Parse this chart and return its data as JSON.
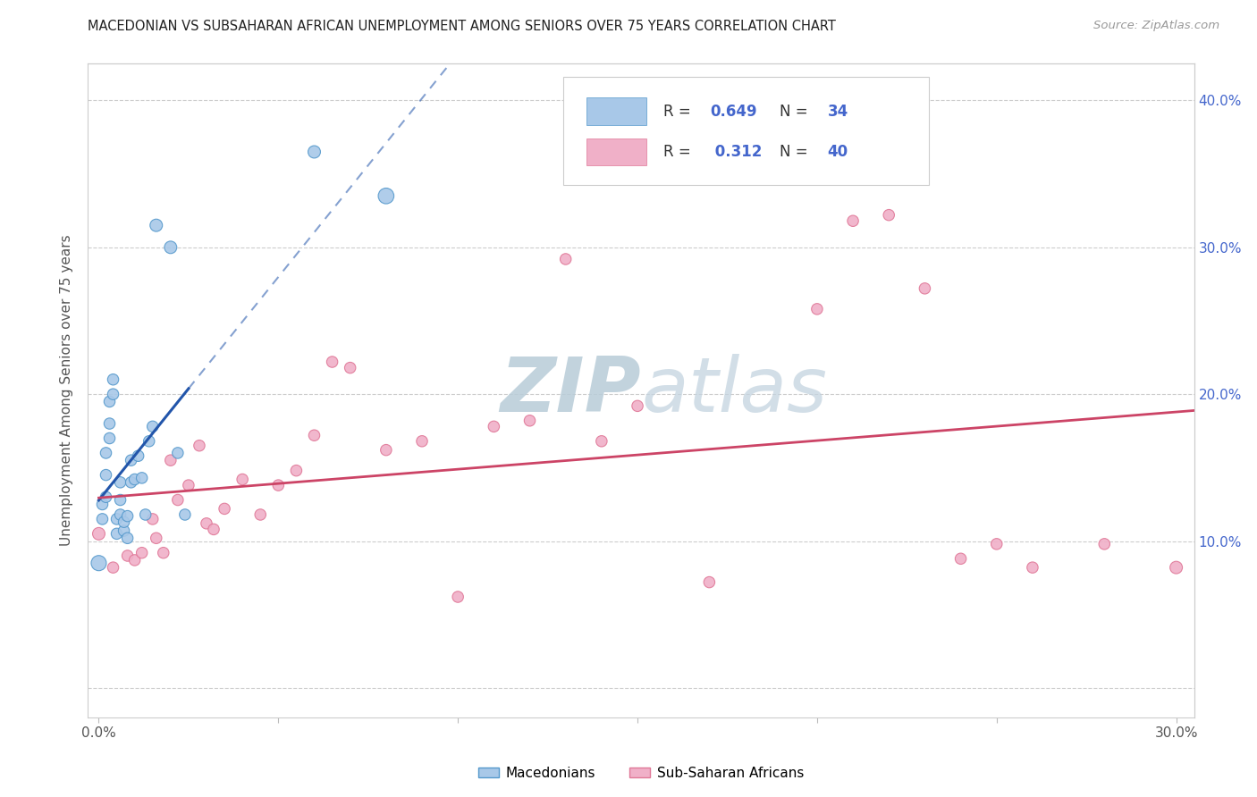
{
  "title": "MACEDONIAN VS SUBSAHARAN AFRICAN UNEMPLOYMENT AMONG SENIORS OVER 75 YEARS CORRELATION CHART",
  "source": "Source: ZipAtlas.com",
  "ylabel": "Unemployment Among Seniors over 75 years",
  "xlim": [
    -0.003,
    0.305
  ],
  "ylim": [
    -0.02,
    0.425
  ],
  "xtick_pos": [
    0.0,
    0.05,
    0.1,
    0.15,
    0.2,
    0.25,
    0.3
  ],
  "xtick_labels": [
    "0.0%",
    "",
    "",
    "",
    "",
    "",
    "30.0%"
  ],
  "ytick_pos": [
    0.0,
    0.1,
    0.2,
    0.3,
    0.4
  ],
  "ytick_labels_right": [
    "",
    "10.0%",
    "20.0%",
    "30.0%",
    "40.0%"
  ],
  "macedonian_color": "#a8c8e8",
  "macedonian_edge": "#5599cc",
  "subsaharan_color": "#f0b0c8",
  "subsaharan_edge": "#e07898",
  "regression_blue": "#2255aa",
  "regression_pink": "#cc4466",
  "watermark_zip_color": "#c0d0e0",
  "watermark_atlas_color": "#c8d8e8",
  "R_mac": 0.649,
  "N_mac": 34,
  "R_sub": 0.312,
  "N_sub": 40,
  "legend_text_color": "#4466cc",
  "legend_label_color": "#333333",
  "macedonian_x": [
    0.0,
    0.001,
    0.001,
    0.002,
    0.002,
    0.002,
    0.003,
    0.003,
    0.003,
    0.004,
    0.004,
    0.005,
    0.005,
    0.006,
    0.006,
    0.006,
    0.007,
    0.007,
    0.008,
    0.008,
    0.009,
    0.009,
    0.01,
    0.011,
    0.012,
    0.013,
    0.014,
    0.015,
    0.016,
    0.02,
    0.022,
    0.024,
    0.06,
    0.08
  ],
  "macedonian_y": [
    0.085,
    0.115,
    0.125,
    0.13,
    0.145,
    0.16,
    0.17,
    0.18,
    0.195,
    0.2,
    0.21,
    0.105,
    0.115,
    0.118,
    0.128,
    0.14,
    0.107,
    0.113,
    0.102,
    0.117,
    0.14,
    0.155,
    0.142,
    0.158,
    0.143,
    0.118,
    0.168,
    0.178,
    0.315,
    0.3,
    0.16,
    0.118,
    0.365,
    0.335
  ],
  "macedonian_sizes": [
    150,
    80,
    80,
    80,
    80,
    80,
    80,
    80,
    80,
    80,
    80,
    80,
    80,
    80,
    80,
    80,
    80,
    80,
    80,
    80,
    80,
    80,
    80,
    80,
    80,
    80,
    80,
    80,
    100,
    100,
    80,
    80,
    100,
    160
  ],
  "subsaharan_x": [
    0.0,
    0.004,
    0.008,
    0.01,
    0.012,
    0.015,
    0.016,
    0.018,
    0.02,
    0.022,
    0.025,
    0.028,
    0.03,
    0.032,
    0.035,
    0.04,
    0.045,
    0.05,
    0.055,
    0.06,
    0.065,
    0.07,
    0.08,
    0.09,
    0.1,
    0.11,
    0.12,
    0.13,
    0.14,
    0.15,
    0.17,
    0.2,
    0.21,
    0.22,
    0.23,
    0.24,
    0.25,
    0.26,
    0.28,
    0.3
  ],
  "subsaharan_y": [
    0.105,
    0.082,
    0.09,
    0.087,
    0.092,
    0.115,
    0.102,
    0.092,
    0.155,
    0.128,
    0.138,
    0.165,
    0.112,
    0.108,
    0.122,
    0.142,
    0.118,
    0.138,
    0.148,
    0.172,
    0.222,
    0.218,
    0.162,
    0.168,
    0.062,
    0.178,
    0.182,
    0.292,
    0.168,
    0.192,
    0.072,
    0.258,
    0.318,
    0.322,
    0.272,
    0.088,
    0.098,
    0.082,
    0.098,
    0.082
  ],
  "subsaharan_sizes": [
    100,
    80,
    80,
    80,
    80,
    80,
    80,
    80,
    80,
    80,
    80,
    80,
    80,
    80,
    80,
    80,
    80,
    80,
    80,
    80,
    80,
    80,
    80,
    80,
    80,
    80,
    80,
    80,
    80,
    80,
    80,
    80,
    80,
    80,
    80,
    80,
    80,
    80,
    80,
    100
  ]
}
